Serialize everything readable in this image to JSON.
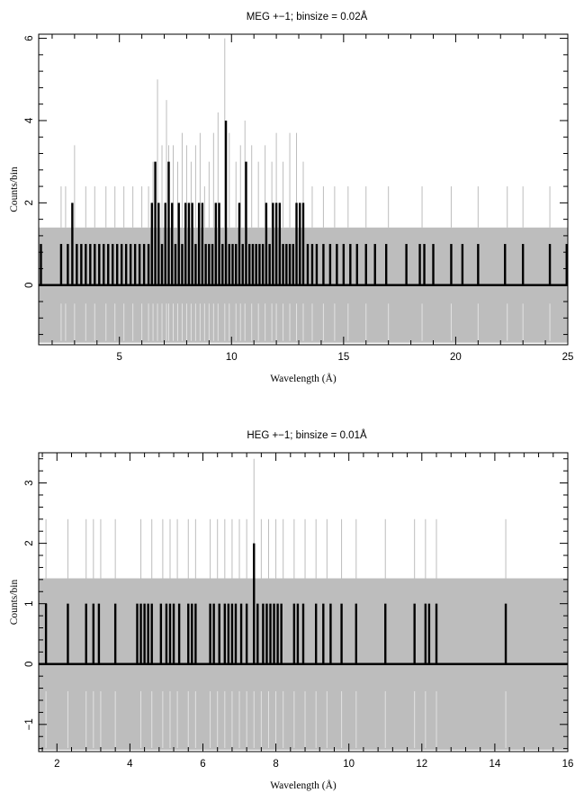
{
  "chart_data": [
    {
      "type": "line",
      "title": "MEG +−1; binsize = 0.02Å",
      "xlabel": "Wavelength (Å)",
      "ylabel": "Counts/bin",
      "xlim": [
        1.4,
        25.0
      ],
      "ylim": [
        -1.45,
        6.1
      ],
      "xticks": [
        5,
        10,
        15,
        20,
        25
      ],
      "yticks": [
        0,
        2,
        4,
        6
      ],
      "grid": false,
      "legend": "none",
      "series": [
        {
          "style": "error-band",
          "color": "#bdbdbd",
          "band_level": 1.4,
          "x": [
            2.4,
            2.6,
            3.0,
            3.5,
            3.9,
            4.4,
            4.8,
            5.2,
            5.6,
            6.0,
            6.3,
            6.5,
            6.7,
            6.9,
            7.1,
            7.2,
            7.4,
            7.6,
            7.8,
            8.0,
            8.2,
            8.4,
            8.6,
            8.8,
            9.0,
            9.2,
            9.4,
            9.7,
            9.9,
            10.2,
            10.4,
            10.6,
            10.9,
            11.2,
            11.5,
            11.8,
            12.0,
            12.3,
            12.6,
            12.9,
            13.2,
            13.6,
            14.1,
            14.6,
            15.2,
            16.0,
            17.0,
            18.5,
            19.8,
            21.0,
            22.3,
            23.0,
            24.2
          ],
          "upper": [
            2.4,
            2.4,
            3.4,
            2.4,
            2.4,
            2.4,
            2.4,
            2.4,
            2.4,
            2.4,
            2.4,
            3.0,
            5.0,
            3.4,
            4.5,
            3.4,
            3.4,
            3.0,
            3.7,
            3.4,
            3.0,
            3.4,
            3.7,
            2.4,
            3.0,
            3.7,
            4.2,
            6.0,
            3.7,
            3.0,
            3.4,
            4.0,
            3.4,
            3.0,
            3.4,
            3.0,
            3.7,
            3.0,
            3.7,
            3.7,
            3.0,
            2.4,
            2.4,
            2.4,
            2.4,
            2.4,
            2.4,
            2.4,
            2.4,
            2.4,
            2.4,
            2.4,
            2.4
          ],
          "lower": -1.4
        },
        {
          "style": "histogram",
          "color": "#000000",
          "x": [
            1.5,
            2.4,
            2.7,
            2.9,
            3.1,
            3.3,
            3.5,
            3.7,
            3.9,
            4.1,
            4.3,
            4.5,
            4.7,
            4.9,
            5.1,
            5.3,
            5.5,
            5.7,
            5.9,
            6.1,
            6.3,
            6.45,
            6.6,
            6.75,
            6.9,
            7.05,
            7.2,
            7.35,
            7.5,
            7.65,
            7.8,
            7.95,
            8.1,
            8.25,
            8.4,
            8.55,
            8.7,
            8.85,
            9.0,
            9.15,
            9.3,
            9.45,
            9.6,
            9.75,
            9.9,
            10.05,
            10.2,
            10.35,
            10.5,
            10.65,
            10.8,
            10.95,
            11.1,
            11.25,
            11.4,
            11.55,
            11.7,
            11.85,
            12.0,
            12.15,
            12.3,
            12.45,
            12.6,
            12.75,
            12.9,
            13.05,
            13.2,
            13.4,
            13.6,
            13.8,
            14.1,
            14.4,
            14.7,
            15.0,
            15.3,
            15.6,
            16.0,
            16.4,
            16.9,
            17.8,
            18.4,
            18.6,
            19.0,
            19.8,
            20.3,
            21.0,
            22.2,
            23.0,
            24.2,
            24.95
          ],
          "values": [
            1,
            1,
            1,
            2,
            1,
            1,
            1,
            1,
            1,
            1,
            1,
            1,
            1,
            1,
            1,
            1,
            1,
            1,
            1,
            1,
            1,
            2,
            3,
            2,
            1,
            2,
            3,
            2,
            1,
            2,
            1,
            2,
            2,
            2,
            1,
            2,
            2,
            1,
            1,
            1,
            2,
            2,
            1,
            4,
            1,
            1,
            1,
            2,
            1,
            3,
            1,
            1,
            1,
            1,
            1,
            2,
            1,
            2,
            2,
            2,
            1,
            1,
            1,
            1,
            2,
            2,
            2,
            1,
            1,
            1,
            1,
            1,
            1,
            1,
            1,
            1,
            1,
            1,
            1,
            1,
            1,
            1,
            1,
            1,
            1,
            1,
            1,
            1,
            1,
            1
          ]
        }
      ]
    },
    {
      "type": "line",
      "title": "HEG +−1; binsize = 0.01Å",
      "xlabel": "Wavelength (Å)",
      "ylabel": "Counts/bin",
      "xlim": [
        1.5,
        16.0
      ],
      "ylim": [
        -1.45,
        3.5
      ],
      "xticks": [
        2,
        4,
        6,
        8,
        10,
        12,
        14,
        16
      ],
      "yticks": [
        -1,
        0,
        1,
        2,
        3
      ],
      "grid": false,
      "legend": "none",
      "series": [
        {
          "style": "error-band",
          "color": "#bdbdbd",
          "band_level": 1.42,
          "x": [
            1.7,
            2.3,
            2.8,
            3.0,
            3.2,
            3.6,
            4.3,
            4.6,
            4.9,
            5.1,
            5.3,
            5.6,
            5.8,
            6.2,
            6.4,
            6.6,
            6.8,
            7.0,
            7.2,
            7.4,
            7.6,
            7.8,
            8.0,
            8.2,
            8.5,
            8.8,
            9.1,
            9.4,
            9.8,
            10.2,
            11.0,
            11.8,
            12.1,
            12.4,
            14.3
          ],
          "upper": [
            2.4,
            2.4,
            2.4,
            2.4,
            2.4,
            2.4,
            2.4,
            2.4,
            2.4,
            2.4,
            2.4,
            2.4,
            2.4,
            2.4,
            2.4,
            2.4,
            2.4,
            2.4,
            2.4,
            3.4,
            2.4,
            2.4,
            2.4,
            2.4,
            2.4,
            2.4,
            2.4,
            2.4,
            2.4,
            2.4,
            2.4,
            2.4,
            2.4,
            2.4,
            2.4
          ],
          "lower": -1.42
        },
        {
          "style": "histogram",
          "color": "#000000",
          "x": [
            1.7,
            2.3,
            2.8,
            3.0,
            3.15,
            3.6,
            4.2,
            4.3,
            4.4,
            4.5,
            4.6,
            4.85,
            5.0,
            5.1,
            5.2,
            5.35,
            5.6,
            5.7,
            5.8,
            6.2,
            6.3,
            6.45,
            6.6,
            6.7,
            6.8,
            6.9,
            7.05,
            7.2,
            7.4,
            7.5,
            7.65,
            7.75,
            7.85,
            7.95,
            8.05,
            8.15,
            8.5,
            8.6,
            8.75,
            9.1,
            9.3,
            9.5,
            9.8,
            10.2,
            11.0,
            11.8,
            12.1,
            12.2,
            12.4,
            14.3
          ],
          "values": [
            1,
            1,
            1,
            1,
            1,
            1,
            1,
            1,
            1,
            1,
            1,
            1,
            1,
            1,
            1,
            1,
            1,
            1,
            1,
            1,
            1,
            1,
            1,
            1,
            1,
            1,
            1,
            1,
            2,
            1,
            1,
            1,
            1,
            1,
            1,
            1,
            1,
            1,
            1,
            1,
            1,
            1,
            1,
            1,
            1,
            1,
            1,
            1,
            1,
            1
          ]
        }
      ]
    }
  ]
}
